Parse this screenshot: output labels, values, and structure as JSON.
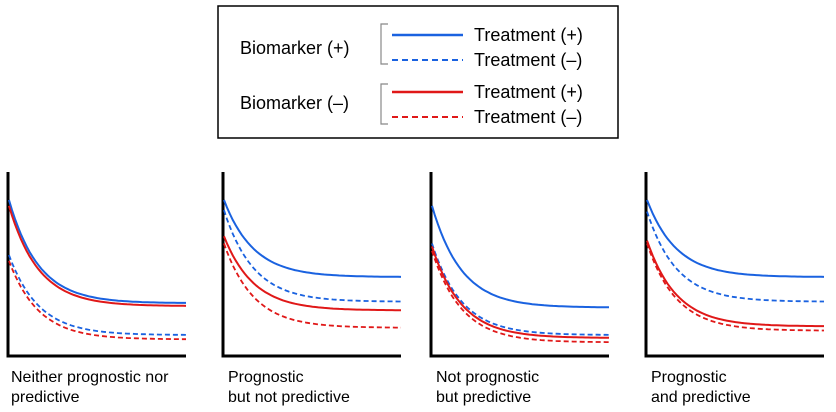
{
  "legend": {
    "groups": [
      {
        "label": "Biomarker (+)",
        "color": "#1a62e0",
        "entries": [
          {
            "label": "Treatment (+)",
            "style": "solid"
          },
          {
            "label": "Treatment (–)",
            "style": "dashed"
          }
        ]
      },
      {
        "label": "Biomarker (–)",
        "color": "#e01818",
        "entries": [
          {
            "label": "Treatment (+)",
            "style": "solid"
          },
          {
            "label": "Treatment (–)",
            "style": "dashed"
          }
        ]
      }
    ]
  },
  "colors": {
    "biomarker_pos": "#1a62e0",
    "biomarker_neg": "#e01818",
    "axis": "#000000"
  },
  "panels": [
    {
      "caption": [
        "Neither prognostic nor",
        "predictive"
      ],
      "curves": {
        "pos_treat": {
          "start": 1.0,
          "end": 0.29
        },
        "pos_ctrl": {
          "start": 0.62,
          "end": 0.07
        },
        "neg_treat": {
          "start": 0.96,
          "end": 0.27
        },
        "neg_ctrl": {
          "start": 0.58,
          "end": 0.04
        }
      }
    },
    {
      "caption": [
        "Prognostic",
        "but not predictive"
      ],
      "curves": {
        "pos_treat": {
          "start": 1.0,
          "end": 0.47
        },
        "pos_ctrl": {
          "start": 0.93,
          "end": 0.3
        },
        "neg_treat": {
          "start": 0.75,
          "end": 0.24
        },
        "neg_ctrl": {
          "start": 0.7,
          "end": 0.12
        }
      }
    },
    {
      "caption": [
        "Not prognostic",
        "but predictive"
      ],
      "curves": {
        "pos_treat": {
          "start": 0.96,
          "end": 0.26
        },
        "pos_ctrl": {
          "start": 0.7,
          "end": 0.07
        },
        "neg_treat": {
          "start": 0.68,
          "end": 0.05
        },
        "neg_ctrl": {
          "start": 0.65,
          "end": 0.02
        }
      }
    },
    {
      "caption": [
        "Prognostic",
        "and predictive"
      ],
      "curves": {
        "pos_treat": {
          "start": 1.0,
          "end": 0.47
        },
        "pos_ctrl": {
          "start": 0.92,
          "end": 0.3
        },
        "neg_treat": {
          "start": 0.72,
          "end": 0.13
        },
        "neg_ctrl": {
          "start": 0.7,
          "end": 0.1
        }
      }
    }
  ]
}
